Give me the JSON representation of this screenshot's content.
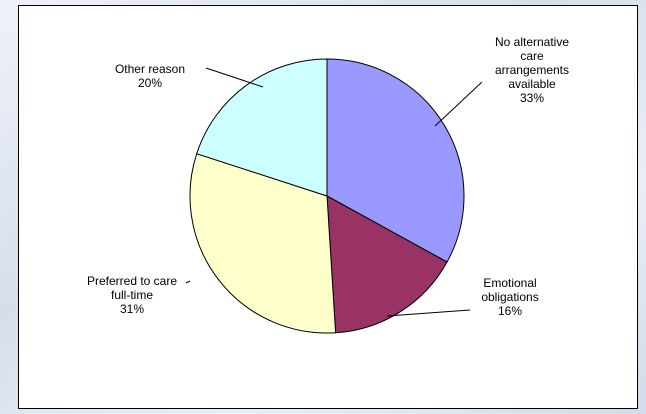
{
  "chart_data": {
    "type": "pie",
    "slices": [
      {
        "label_lines": [
          "No alternative",
          "care",
          "arrangements",
          "available"
        ],
        "pct_label": "33%",
        "value": 33,
        "color": "#9999ff"
      },
      {
        "label_lines": [
          "Emotional",
          "obligations"
        ],
        "pct_label": "16%",
        "value": 16,
        "color": "#993366"
      },
      {
        "label_lines": [
          "Preferred to care",
          "full-time"
        ],
        "pct_label": "31%",
        "value": 31,
        "color": "#ffffcc"
      },
      {
        "label_lines": [
          "Other reason"
        ],
        "pct_label": "20%",
        "value": 20,
        "color": "#ccffff"
      }
    ],
    "start_angle_deg": 0,
    "direction": "clockwise",
    "legend": "none"
  }
}
